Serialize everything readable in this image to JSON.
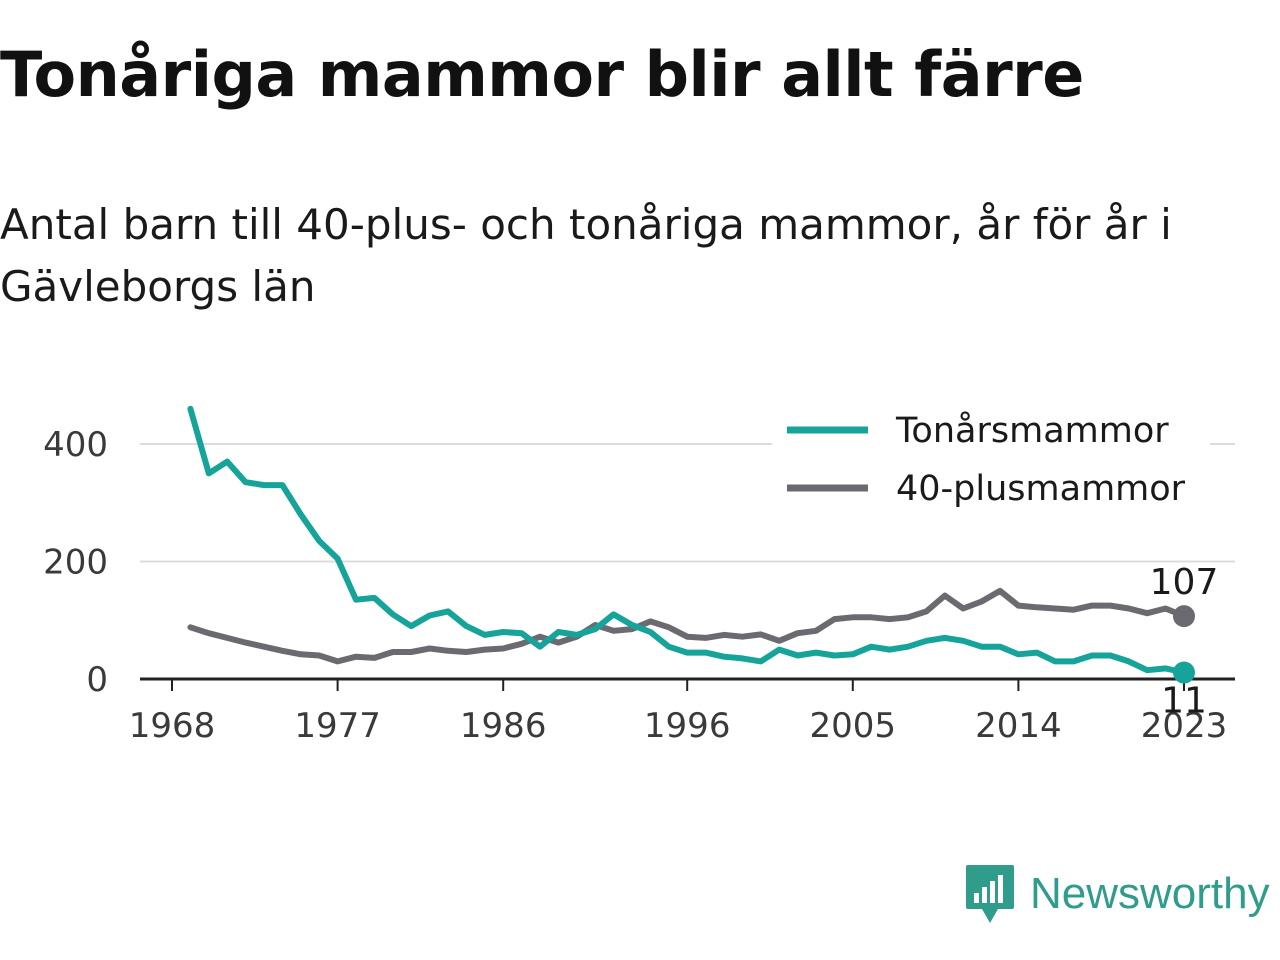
{
  "title": "Tonåriga mammor blir allt färre",
  "subtitle": "Antal barn till 40-plus- och tonåriga mammor, år för år i Gävleborgs län",
  "brand": {
    "name": "Newsworthy",
    "icon": "newsworthy-logo-icon",
    "color": "#2f9c8c"
  },
  "chart_data": {
    "type": "line",
    "x": [
      1969,
      1970,
      1971,
      1972,
      1973,
      1974,
      1975,
      1976,
      1977,
      1978,
      1979,
      1980,
      1981,
      1982,
      1983,
      1984,
      1985,
      1986,
      1987,
      1988,
      1989,
      1990,
      1991,
      1992,
      1993,
      1994,
      1995,
      1996,
      1997,
      1998,
      1999,
      2000,
      2001,
      2002,
      2003,
      2004,
      2005,
      2006,
      2007,
      2008,
      2009,
      2010,
      2011,
      2012,
      2013,
      2014,
      2015,
      2016,
      2017,
      2018,
      2019,
      2020,
      2021,
      2022,
      2023
    ],
    "series": [
      {
        "name": "Tonårsmammor",
        "color": "#16a39a",
        "values": [
          460,
          350,
          370,
          335,
          330,
          330,
          280,
          235,
          205,
          135,
          138,
          110,
          90,
          108,
          115,
          90,
          75,
          80,
          78,
          55,
          80,
          75,
          85,
          110,
          92,
          80,
          55,
          45,
          45,
          38,
          35,
          30,
          50,
          40,
          45,
          40,
          42,
          55,
          50,
          55,
          65,
          70,
          65,
          55,
          55,
          42,
          45,
          30,
          30,
          40,
          40,
          30,
          15,
          18,
          11
        ]
      },
      {
        "name": "40-plusmammor",
        "color": "#6b6a70",
        "values": [
          88,
          78,
          70,
          62,
          55,
          48,
          42,
          40,
          30,
          38,
          36,
          46,
          46,
          52,
          48,
          46,
          50,
          52,
          60,
          72,
          62,
          72,
          92,
          82,
          85,
          98,
          88,
          72,
          70,
          75,
          72,
          76,
          65,
          78,
          82,
          102,
          105,
          105,
          102,
          105,
          115,
          142,
          120,
          132,
          150,
          125,
          122,
          120,
          118,
          125,
          125,
          120,
          112,
          120,
          107
        ]
      }
    ],
    "xticks": [
      "1968",
      "1977",
      "1986",
      "1996",
      "2005",
      "2014",
      "2023"
    ],
    "yticks": [
      "0",
      "200",
      "400"
    ],
    "xlim": [
      1968,
      2023
    ],
    "ylim": [
      0,
      470
    ],
    "grid": "horizontal",
    "legend": "top-right",
    "end_labels": [
      {
        "series": "40-plusmammor",
        "label": "107"
      },
      {
        "series": "Tonårsmammor",
        "label": "11"
      }
    ]
  }
}
